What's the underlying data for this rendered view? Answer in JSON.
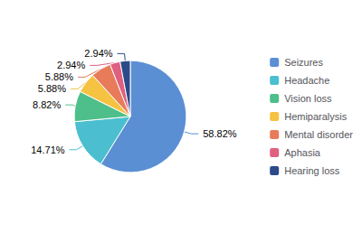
{
  "chart_data": {
    "type": "pie",
    "categories": [
      "Seizures",
      "Headache",
      "Vision loss",
      "Hemiparalysis",
      "Mental disorder",
      "Aphasia",
      "Hearing loss"
    ],
    "values": [
      58.82,
      14.71,
      8.82,
      5.88,
      5.88,
      2.94,
      2.94
    ],
    "value_labels": [
      "58.82%",
      "14.71%",
      "8.82%",
      "5.88%",
      "5.88%",
      "2.94%",
      "2.94%"
    ],
    "colors": [
      "#5B8FD4",
      "#4BBFCF",
      "#4EBF8A",
      "#F5C242",
      "#E87C5A",
      "#E06080",
      "#2B4A8A"
    ],
    "data_labels": true,
    "legend": "right"
  }
}
